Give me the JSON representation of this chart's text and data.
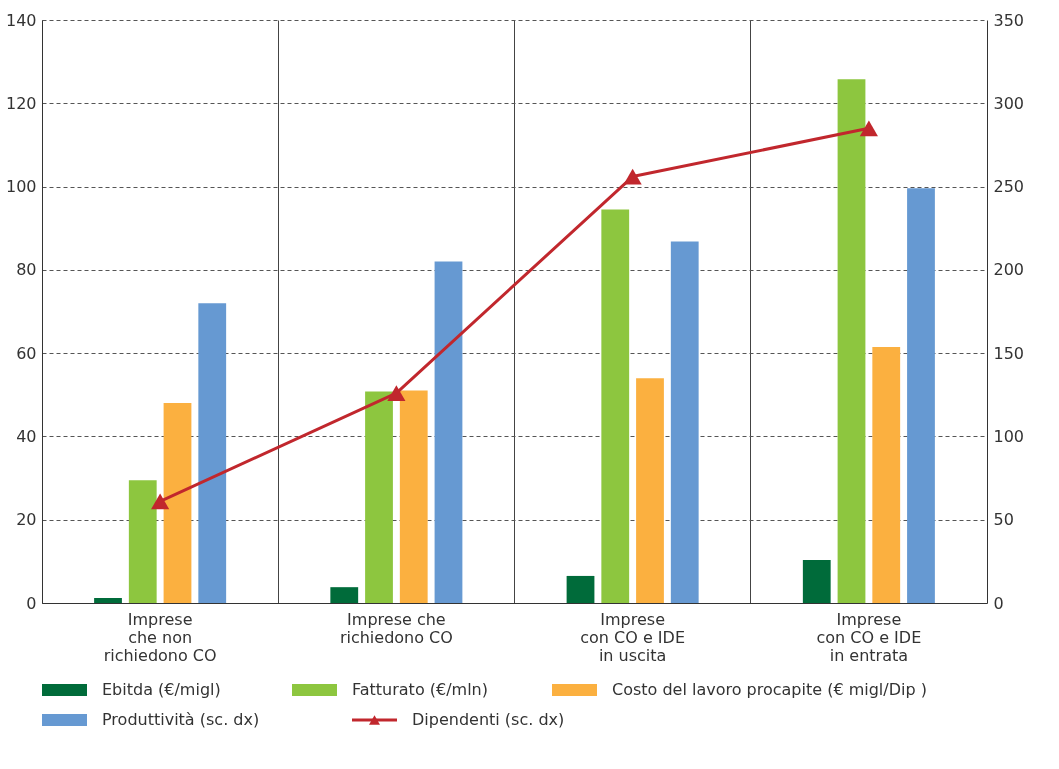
{
  "chart_data": {
    "type": "bar",
    "categories": [
      "Imprese\nche non\nrichiedono CO",
      "Imprese che\nrichiedono CO",
      "Imprese\ncon CO e IDE\nin uscita",
      "Imprese\ncon CO e IDE\nin entrata"
    ],
    "series": [
      {
        "name": "Ebitda (€/migl)",
        "color": "#006b3a",
        "values": [
          1.2,
          3.8,
          6.5,
          10.3
        ]
      },
      {
        "name": "Fatturato (€/mln)",
        "color": "#8dc63f",
        "values": [
          29.5,
          50.8,
          94.5,
          125.8
        ]
      },
      {
        "name": "Costo del lavoro procapite (€ migl/Dip )",
        "color": "#fbb040",
        "values": [
          48,
          51,
          54,
          61.5
        ]
      },
      {
        "name": "Produttività (sc. dx)",
        "color": "#6699d2",
        "axis": "y2",
        "values": [
          180,
          205,
          217,
          249
        ]
      },
      {
        "name": "Dipendenti (sc. dx)",
        "color": "#c1272d",
        "type": "line",
        "axis": "y2",
        "marker": "triangle",
        "values": [
          61,
          126,
          256,
          285
        ]
      }
    ],
    "ylim": [
      0,
      140
    ],
    "yticks": [
      0,
      20,
      40,
      60,
      80,
      100,
      120,
      140
    ],
    "y2lim": [
      0,
      350
    ],
    "y2ticks": [
      0,
      50,
      100,
      150,
      200,
      250,
      300,
      350
    ],
    "grid": true,
    "legend": "bottom"
  }
}
